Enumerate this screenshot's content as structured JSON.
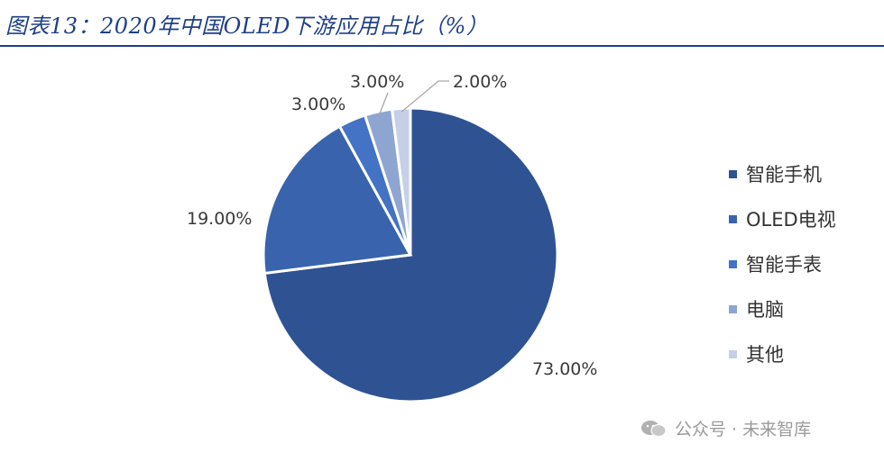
{
  "header": {
    "title": "图表13：2020年中国OLED下游应用占比（%）"
  },
  "chart_data": {
    "type": "pie",
    "categories": [
      "智能手机",
      "OLED电视",
      "智能手表",
      "电脑",
      "其他"
    ],
    "values": [
      73,
      19,
      3,
      3,
      2
    ],
    "value_labels": [
      "73.00%",
      "19.00%",
      "3.00%",
      "3.00%",
      "2.00%"
    ],
    "colors": [
      "#2f5292",
      "#3a63ad",
      "#4472c4",
      "#8ea5d1",
      "#c5d0e8"
    ],
    "legend_position": "right"
  },
  "watermark": {
    "text": "公众号 · 未来智库"
  }
}
